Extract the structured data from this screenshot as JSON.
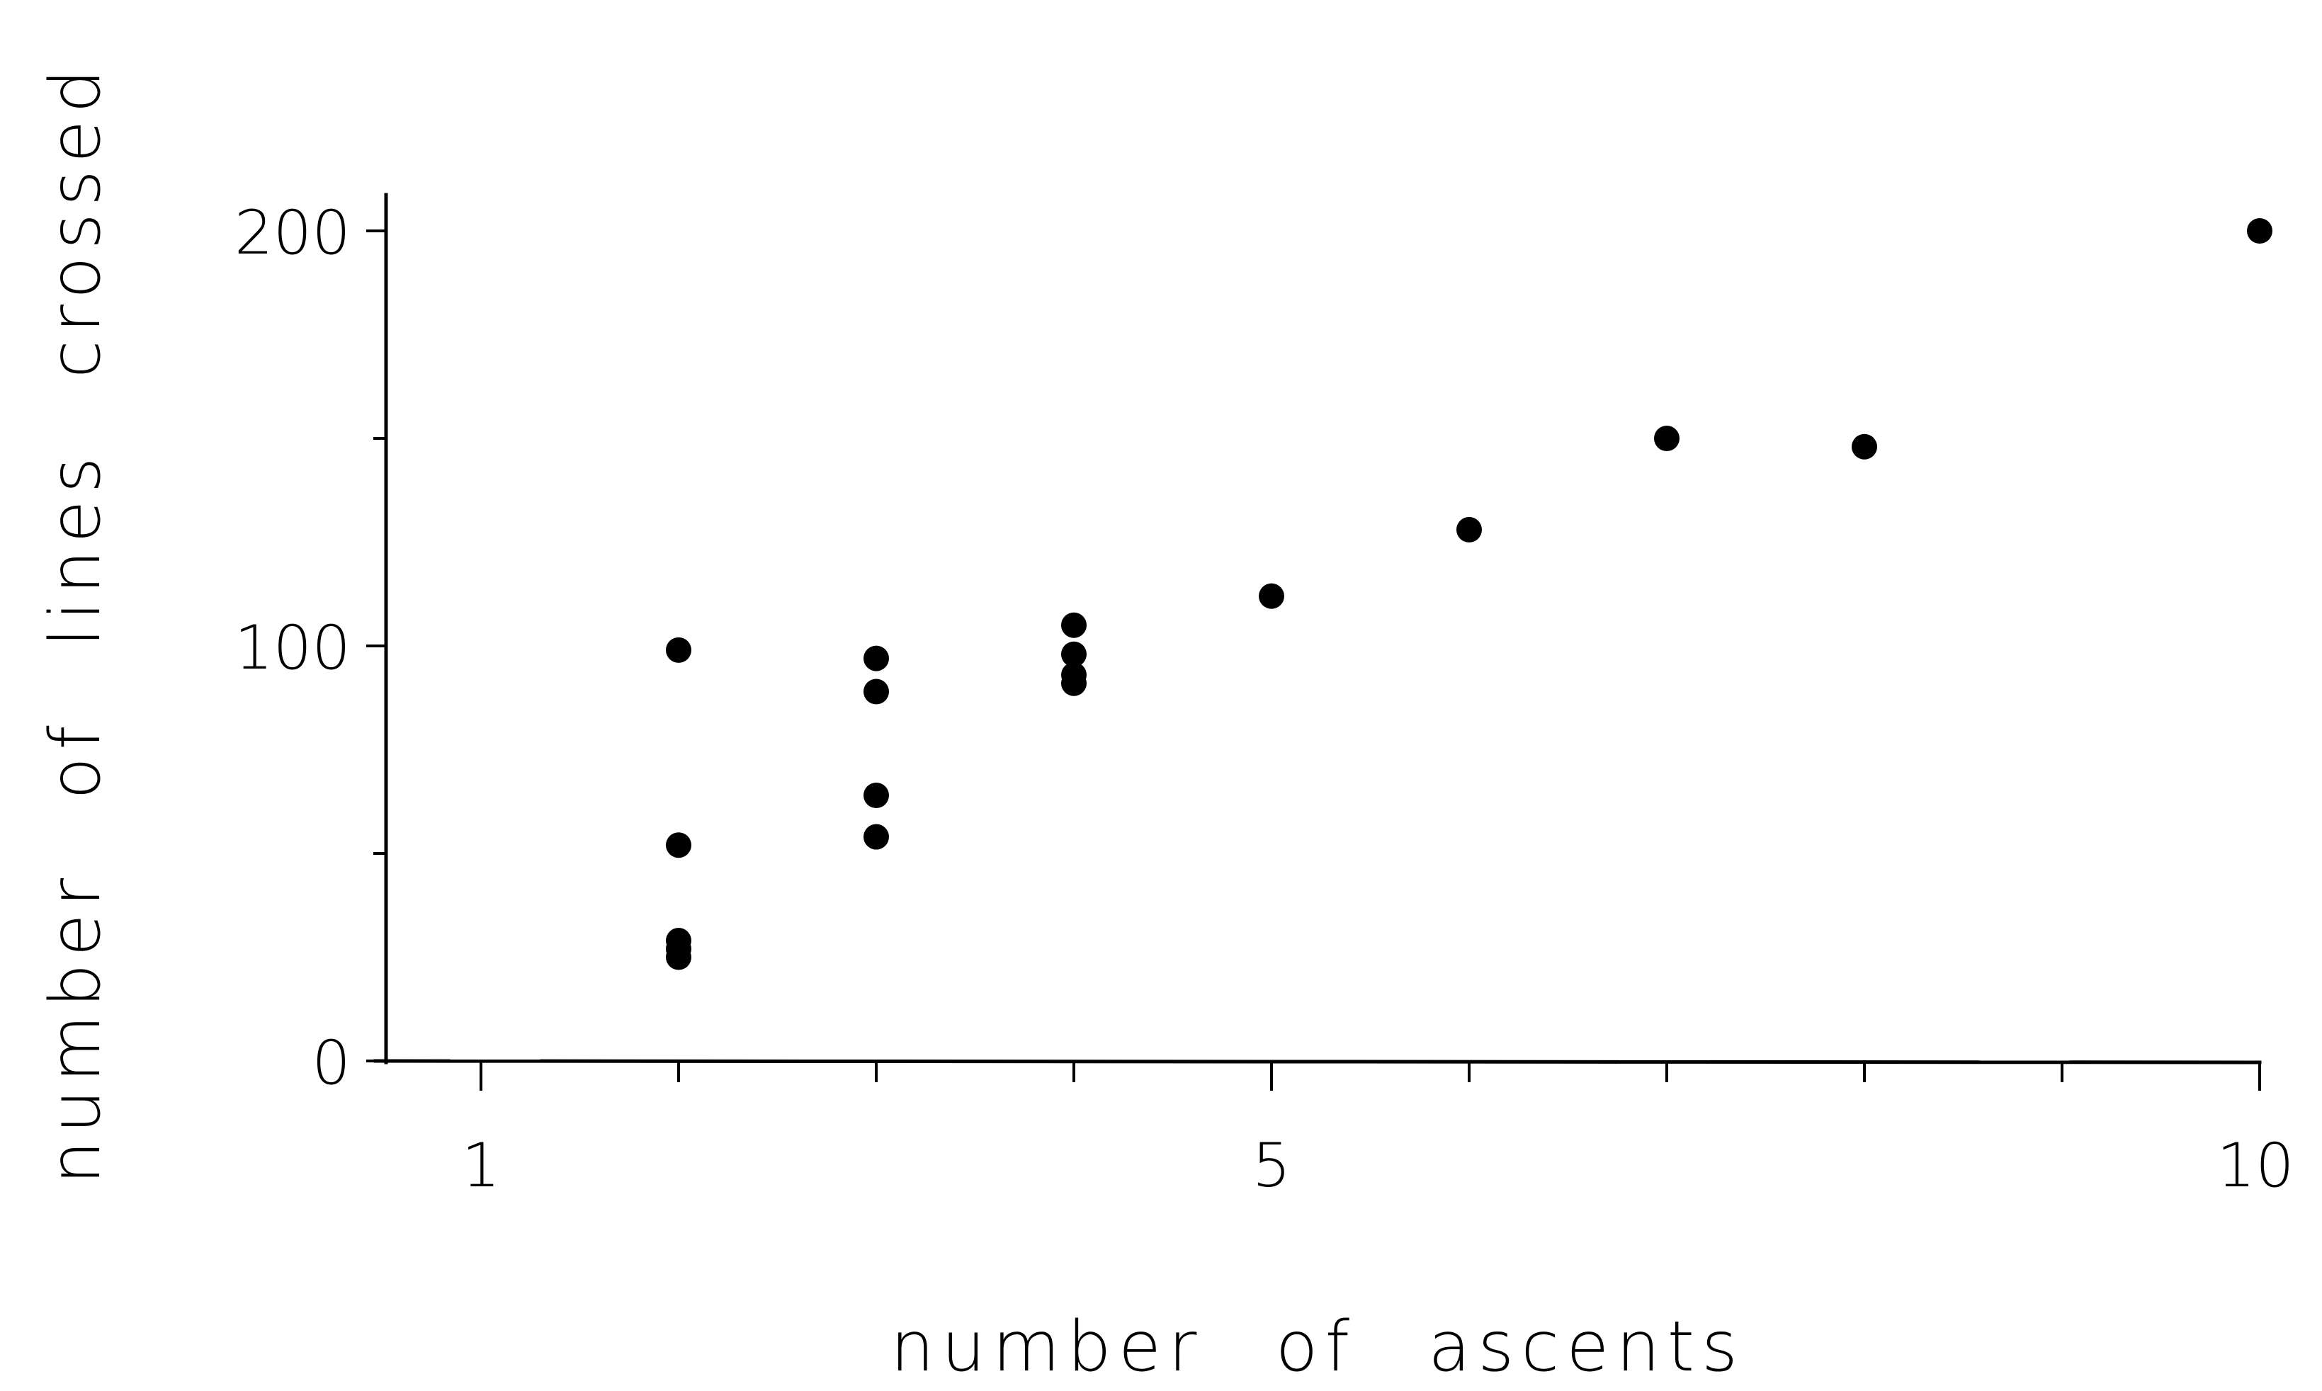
{
  "chart_data": {
    "type": "scatter",
    "title": "",
    "xlabel": "number of ascents",
    "ylabel": "number of lines crossed",
    "xlim": [
      0.5,
      10
    ],
    "ylim": [
      0,
      205
    ],
    "x_major_ticks": [
      1,
      5,
      10
    ],
    "x_minor_ticks": [
      2,
      3,
      4,
      6,
      7,
      8,
      9
    ],
    "y_major_ticks": [
      0,
      100,
      200
    ],
    "y_minor_ticks": [
      50,
      150
    ],
    "x_tick_labels": [
      "1",
      "5",
      "10"
    ],
    "y_tick_labels": [
      "0",
      "100",
      "200"
    ],
    "grid": false,
    "legend": "none",
    "points": [
      {
        "x": 2,
        "y": 99
      },
      {
        "x": 2,
        "y": 52
      },
      {
        "x": 2,
        "y": 29
      },
      {
        "x": 2,
        "y": 27
      },
      {
        "x": 2,
        "y": 25
      },
      {
        "x": 3,
        "y": 97
      },
      {
        "x": 3,
        "y": 89
      },
      {
        "x": 3,
        "y": 64
      },
      {
        "x": 3,
        "y": 54
      },
      {
        "x": 4,
        "y": 105
      },
      {
        "x": 4,
        "y": 98
      },
      {
        "x": 4,
        "y": 93
      },
      {
        "x": 4,
        "y": 91
      },
      {
        "x": 5,
        "y": 112
      },
      {
        "x": 6,
        "y": 128
      },
      {
        "x": 7,
        "y": 150
      },
      {
        "x": 8,
        "y": 148
      },
      {
        "x": 10,
        "y": 200
      }
    ],
    "point_color": "#000000"
  }
}
